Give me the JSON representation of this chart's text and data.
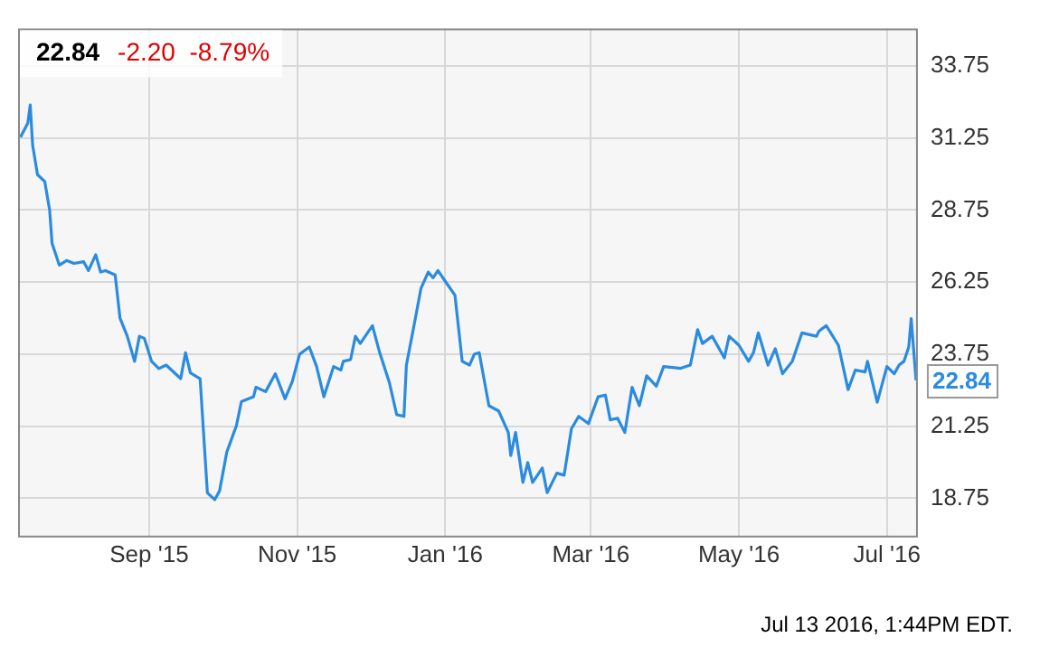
{
  "chart_data": {
    "type": "line",
    "title": "22.84",
    "subtitle": "-2.20  -8.79%",
    "x": [
      "2015-07-10",
      "2015-07-13",
      "2015-07-14",
      "2015-07-15",
      "2015-07-17",
      "2015-07-20",
      "2015-07-22",
      "2015-07-23",
      "2015-07-26",
      "2015-07-29",
      "2015-08-01",
      "2015-08-05",
      "2015-08-07",
      "2015-08-10",
      "2015-08-12",
      "2015-08-14",
      "2015-08-18",
      "2015-08-20",
      "2015-08-23",
      "2015-08-26",
      "2015-08-28",
      "2015-08-30",
      "2015-09-02",
      "2015-09-05",
      "2015-09-08",
      "2015-09-14",
      "2015-09-16",
      "2015-09-18",
      "2015-09-22",
      "2015-09-25",
      "2015-09-28",
      "2015-09-30",
      "2015-10-03",
      "2015-10-07",
      "2015-10-09",
      "2015-10-14",
      "2015-10-15",
      "2015-10-19",
      "2015-10-23",
      "2015-10-27",
      "2015-10-30",
      "2015-11-02",
      "2015-11-06",
      "2015-11-09",
      "2015-11-12",
      "2015-11-16",
      "2015-11-19",
      "2015-11-20",
      "2015-11-23",
      "2015-11-25",
      "2015-11-27",
      "2015-12-02",
      "2015-12-05",
      "2015-12-09",
      "2015-12-12",
      "2015-12-15",
      "2015-12-16",
      "2015-12-19",
      "2015-12-22",
      "2015-12-25",
      "2015-12-27",
      "2015-12-29",
      "2016-01-01",
      "2016-01-05",
      "2016-01-08",
      "2016-01-11",
      "2016-01-13",
      "2016-01-15",
      "2016-01-19",
      "2016-01-23",
      "2016-01-27",
      "2016-01-28",
      "2016-01-30",
      "2016-02-02",
      "2016-02-04",
      "2016-02-06",
      "2016-02-10",
      "2016-02-12",
      "2016-02-16",
      "2016-02-19",
      "2016-02-22",
      "2016-02-25",
      "2016-02-29",
      "2016-03-04",
      "2016-03-07",
      "2016-03-09",
      "2016-03-12",
      "2016-03-15",
      "2016-03-18",
      "2016-03-21",
      "2016-03-24",
      "2016-03-28",
      "2016-03-31",
      "2016-04-07",
      "2016-04-11",
      "2016-04-14",
      "2016-04-16",
      "2016-04-20",
      "2016-04-25",
      "2016-04-27",
      "2016-05-01",
      "2016-05-05",
      "2016-05-07",
      "2016-05-09",
      "2016-05-13",
      "2016-05-16",
      "2016-05-19",
      "2016-05-23",
      "2016-05-27",
      "2016-06-02",
      "2016-06-03",
      "2016-06-06",
      "2016-06-11",
      "2016-06-15",
      "2016-06-18",
      "2016-06-22",
      "2016-06-23",
      "2016-06-27",
      "2016-07-01",
      "2016-07-04",
      "2016-07-06",
      "2016-07-08",
      "2016-07-10",
      "2016-07-11",
      "2016-07-13"
    ],
    "series": [
      {
        "color": "#2a8be0",
        "values": [
          31.28,
          31.77,
          32.4,
          31.0,
          29.98,
          29.74,
          28.75,
          27.6,
          26.84,
          27.0,
          26.9,
          26.96,
          26.65,
          27.2,
          26.6,
          26.65,
          26.5,
          25.0,
          24.37,
          23.5,
          24.37,
          24.3,
          23.5,
          23.25,
          23.37,
          22.9,
          23.8,
          23.1,
          22.9,
          18.94,
          18.7,
          19.0,
          20.35,
          21.28,
          22.1,
          22.27,
          22.6,
          22.45,
          23.07,
          22.2,
          22.8,
          23.75,
          24.0,
          23.32,
          22.27,
          23.32,
          23.2,
          23.5,
          23.56,
          24.37,
          24.12,
          24.74,
          23.8,
          22.76,
          21.65,
          21.59,
          23.37,
          24.68,
          26.03,
          26.6,
          26.4,
          26.65,
          26.28,
          25.8,
          23.5,
          23.37,
          23.75,
          23.8,
          21.96,
          21.78,
          21.03,
          20.23,
          21.03,
          19.3,
          19.99,
          19.3,
          19.8,
          18.94,
          19.62,
          19.55,
          21.16,
          21.59,
          21.34,
          22.27,
          22.33,
          21.47,
          21.53,
          21.03,
          22.6,
          21.96,
          23.0,
          22.64,
          23.32,
          23.26,
          23.37,
          24.6,
          24.12,
          24.37,
          23.62,
          24.37,
          24.06,
          23.5,
          23.8,
          24.49,
          23.37,
          23.94,
          23.07,
          23.5,
          24.49,
          24.37,
          24.55,
          24.74,
          24.06,
          22.52,
          23.2,
          23.13,
          23.5,
          22.08,
          23.32,
          23.07,
          23.37,
          23.5,
          24.0,
          24.98,
          22.84
        ]
      }
    ],
    "xlim": [
      "2015-07-09",
      "2016-07-13"
    ],
    "xticks": [
      {
        "value": "2015-09-01",
        "label": "Sep '15"
      },
      {
        "value": "2015-11-01",
        "label": "Nov '15"
      },
      {
        "value": "2016-01-01",
        "label": "Jan '16"
      },
      {
        "value": "2016-03-01",
        "label": "Mar '16"
      },
      {
        "value": "2016-05-01",
        "label": "May '16"
      },
      {
        "value": "2016-07-01",
        "label": "Jul '16"
      }
    ],
    "ylim": [
      17.45,
      35.05
    ],
    "yticks": [
      {
        "value": 18.75,
        "label": "18.75"
      },
      {
        "value": 21.25,
        "label": "21.25"
      },
      {
        "value": 23.75,
        "label": "23.75"
      },
      {
        "value": 26.25,
        "label": "26.25"
      },
      {
        "value": 28.75,
        "label": "28.75"
      },
      {
        "value": 31.25,
        "label": "31.25"
      },
      {
        "value": 33.75,
        "label": "33.75"
      }
    ],
    "grid": true,
    "legend": false,
    "marker": "none",
    "line_style": "solid",
    "annotations": [
      {
        "text": "22.84",
        "x": "2016-07-13",
        "y": 22.84
      },
      "Jul 13 2016, 1:44PM EDT."
    ]
  }
}
